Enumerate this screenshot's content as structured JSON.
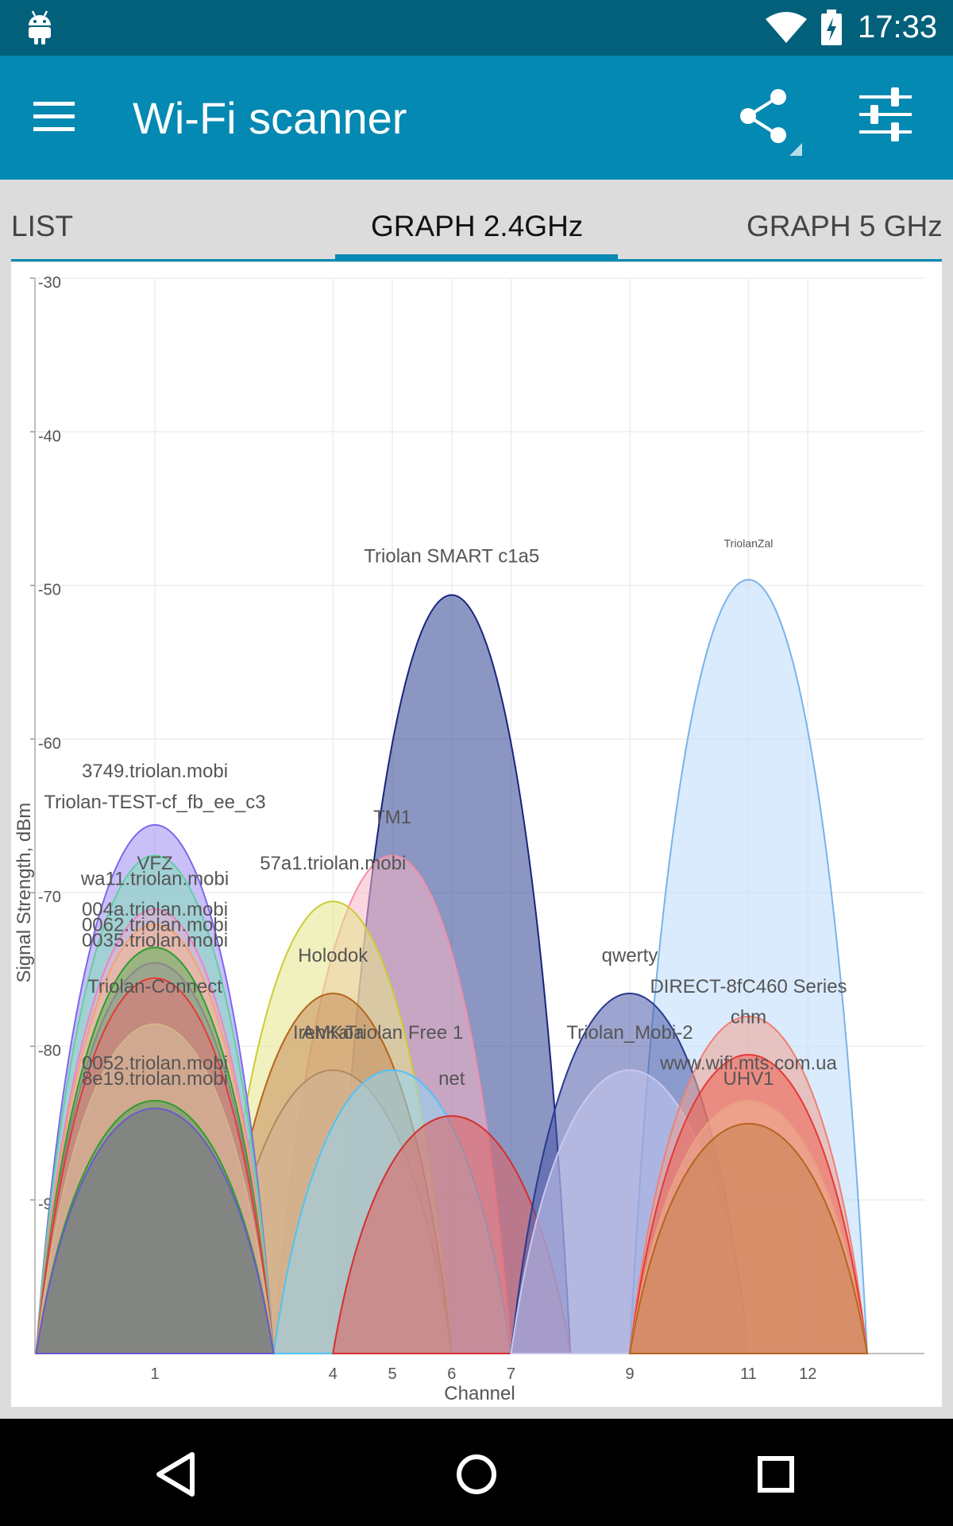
{
  "status_bar": {
    "time": "17:33",
    "icons": [
      "android-icon",
      "wifi-icon",
      "battery-charging-icon"
    ]
  },
  "app_bar": {
    "title": "Wi-Fi scanner",
    "icons": [
      "menu-icon",
      "share-icon",
      "settings-sliders-icon"
    ]
  },
  "tabs": [
    {
      "label": "LIST",
      "active": false
    },
    {
      "label": "GRAPH 2.4GHz",
      "active": true
    },
    {
      "label": "GRAPH 5 GHz",
      "active": false
    }
  ],
  "colors": {
    "status_bar": "#03607b",
    "app_bar": "#0389b2",
    "accent": "#0389b2"
  },
  "chart_data": {
    "type": "area",
    "xlabel": "Channel",
    "ylabel": "Signal Strength, dBm",
    "ylim": [
      -100,
      -30
    ],
    "y_ticks": [
      -30,
      -40,
      -50,
      -60,
      -70,
      -80,
      -90
    ],
    "x_tick_labels": [
      1,
      4,
      5,
      6,
      7,
      9,
      11,
      12
    ],
    "grid": true,
    "series": [
      {
        "name": "Triolan SMART c1a5",
        "channel": 6,
        "signal": -50.5,
        "color": "#1a237e",
        "fill": "#2d3f8f"
      },
      {
        "name": "TriolanZal",
        "channel": 11,
        "signal": -49.5,
        "color": "#7ab3e8",
        "fill": "#b9dbfb"
      },
      {
        "name": "3749.triolan.mobi",
        "channel": 1,
        "signal": -65.5,
        "color": "#7b68ee",
        "fill": "#9c8cf0"
      },
      {
        "name": "Triolan-TEST-cf_fb_ee_c3",
        "channel": 1,
        "signal": -67.5,
        "color": "#5fd0a0",
        "fill": "#82ddb8"
      },
      {
        "name": "VFZ",
        "channel": 1,
        "signal": -71,
        "color": "#ee82c8",
        "fill": "#f3a7d6"
      },
      {
        "name": "wa11.triolan.mobi",
        "channel": 1,
        "signal": -72,
        "color": "#f4a26a",
        "fill": "#f5b68a"
      },
      {
        "name": "004a.triolan.mobi",
        "channel": 1,
        "signal": -73.5,
        "color": "#2e9e2e",
        "fill": "#5fb05f"
      },
      {
        "name": "0062.triolan.mobi",
        "channel": 1,
        "signal": -74.5,
        "color": "#888888",
        "fill": "#9a9a9a"
      },
      {
        "name": "0035.triolan.mobi",
        "channel": 1,
        "signal": -75.5,
        "color": "#e53935",
        "fill": "#e57373"
      },
      {
        "name": "Triolan-Connect",
        "channel": 1,
        "signal": -78.5,
        "color": "#d2b48c",
        "fill": "#dcc2a0"
      },
      {
        "name": "0052.triolan.mobi",
        "channel": 1,
        "signal": -83.5,
        "color": "#2e9e2e",
        "fill": "#5a9a5a"
      },
      {
        "name": "8e19.triolan.mobi",
        "channel": 1,
        "signal": -84,
        "color": "#6a5acd",
        "fill": "#7a7090"
      },
      {
        "name": "TM1",
        "channel": 5,
        "signal": -67.5,
        "color": "#f48fa8",
        "fill": "#f7b5c6"
      },
      {
        "name": "57a1.triolan.mobi",
        "channel": 4,
        "signal": -70.5,
        "color": "#cccc33",
        "fill": "#e6e68a"
      },
      {
        "name": "Holodok",
        "channel": 4,
        "signal": -76.5,
        "color": "#b5651d",
        "fill": "#c48a55"
      },
      {
        "name": "IrenKa",
        "channel": 4,
        "signal": -81.5,
        "color": "#e0b8a8",
        "fill": "#edc8b8"
      },
      {
        "name": "Triolan Free 1",
        "channel": 5,
        "signal": -81.5,
        "color": "#4fc3f7",
        "fill": "#8fd6f5"
      },
      {
        "name": "AMKoa",
        "channel": 4,
        "signal": -81.5,
        "color": "#b08a60",
        "fill": "#c8a880"
      },
      {
        "name": "net",
        "channel": 6,
        "signal": -84.5,
        "color": "#d32f2f",
        "fill": "#e06060"
      },
      {
        "name": "qwerty",
        "channel": 9,
        "signal": -76.5,
        "color": "#2a3a8f",
        "fill": "#4a5aa8"
      },
      {
        "name": "Triolan_Mobi-2",
        "channel": 9,
        "signal": -81.5,
        "color": "#c8c8f0",
        "fill": "#c8c8f0"
      },
      {
        "name": "DIRECT-8fC460 Series",
        "channel": 11,
        "signal": -78,
        "color": "#f08070",
        "fill": "#f0a090"
      },
      {
        "name": "chm",
        "channel": 11,
        "signal": -80.5,
        "color": "#e53935",
        "fill": "#ee6050"
      },
      {
        "name": "www.wifi.mts.com.ua",
        "channel": 11,
        "signal": -83.5,
        "color": "#e8a080",
        "fill": "#efb090"
      },
      {
        "name": "UHV1",
        "channel": 11,
        "signal": -85,
        "color": "#b5651d",
        "fill": "#c88050"
      }
    ]
  }
}
